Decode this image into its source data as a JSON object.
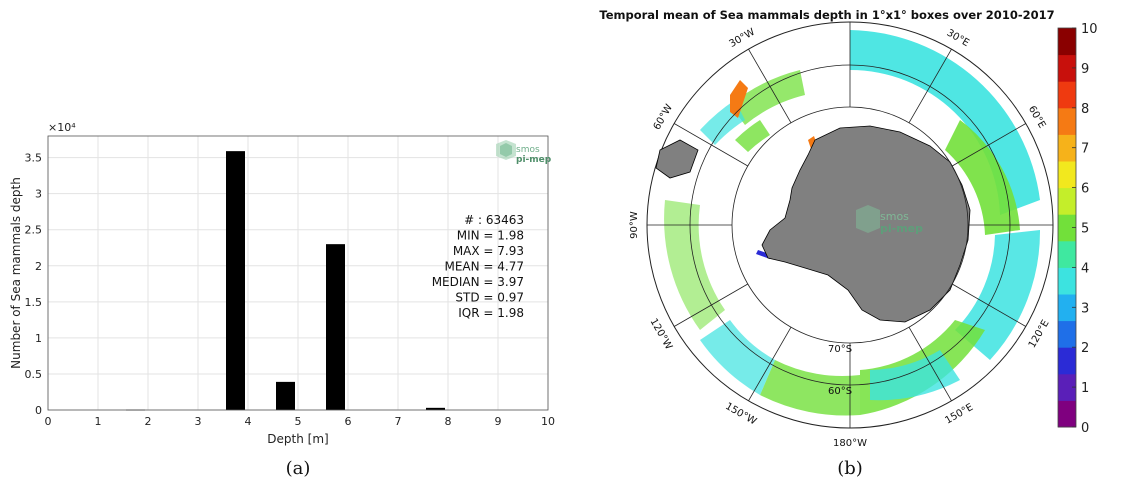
{
  "chart_data": [
    {
      "type": "bar",
      "panel": "(a)",
      "xlabel": "Depth [m]",
      "ylabel": "Number of Sea mammals depth",
      "y_multiplier_label": "×10⁴",
      "xlim": [
        0,
        10
      ],
      "ylim": [
        0,
        3.8
      ],
      "y_unit_scale": 10000,
      "grid": true,
      "x_ticks": [
        "0",
        "1",
        "2",
        "3",
        "4",
        "5",
        "6",
        "7",
        "8",
        "9",
        "10"
      ],
      "y_ticks": [
        "0",
        "0.5",
        "1",
        "1.5",
        "2",
        "2.5",
        "3",
        "3.5"
      ],
      "bars": [
        {
          "x": 1.75,
          "value": 0.005
        },
        {
          "x": 3.75,
          "value": 3.59
        },
        {
          "x": 4.75,
          "value": 0.39
        },
        {
          "x": 5.75,
          "value": 2.3
        },
        {
          "x": 7.75,
          "value": 0.03
        }
      ],
      "bar_width": 0.38,
      "bar_color": "#000000",
      "annotations": [
        "# : 63463",
        "MIN = 1.98",
        "MAX =  7.93",
        "MEAN = 4.77",
        "MEDIAN = 3.97",
        "STD = 0.97",
        "IQR = 1.98"
      ],
      "logo": {
        "top": "smos",
        "bottom": "pi-mep"
      }
    },
    {
      "type": "heatmap",
      "panel": "(b)",
      "title": "Temporal mean of Sea mammals depth in 1°x1° boxes over 2010-2017",
      "projection": "south-polar stereographic",
      "longitude_labels": [
        "30°W",
        "30°E",
        "60°W",
        "60°E",
        "90°W",
        "120°W",
        "120°E",
        "150°W",
        "150°E",
        "180°W"
      ],
      "latitude_labels": [
        "70°S",
        "60°S"
      ],
      "colorbar": {
        "min": 0,
        "max": 10,
        "ticks": [
          "0",
          "1",
          "2",
          "3",
          "4",
          "5",
          "6",
          "7",
          "8",
          "9",
          "10"
        ],
        "colors": [
          "#7f007f",
          "#5a1fb8",
          "#2b2bd6",
          "#1f6fe8",
          "#22b0f0",
          "#3ce3e0",
          "#3fe8a0",
          "#72e03a",
          "#c4ee2a",
          "#f2e81e",
          "#f6b21a",
          "#f57a14",
          "#ef3a10",
          "#c8100c",
          "#8a0000"
        ]
      },
      "legend_placement": "right",
      "logo": {
        "top": "smos",
        "bottom": "pi-mep"
      }
    }
  ],
  "captions": {
    "a": "(a)",
    "b": "(b)"
  }
}
